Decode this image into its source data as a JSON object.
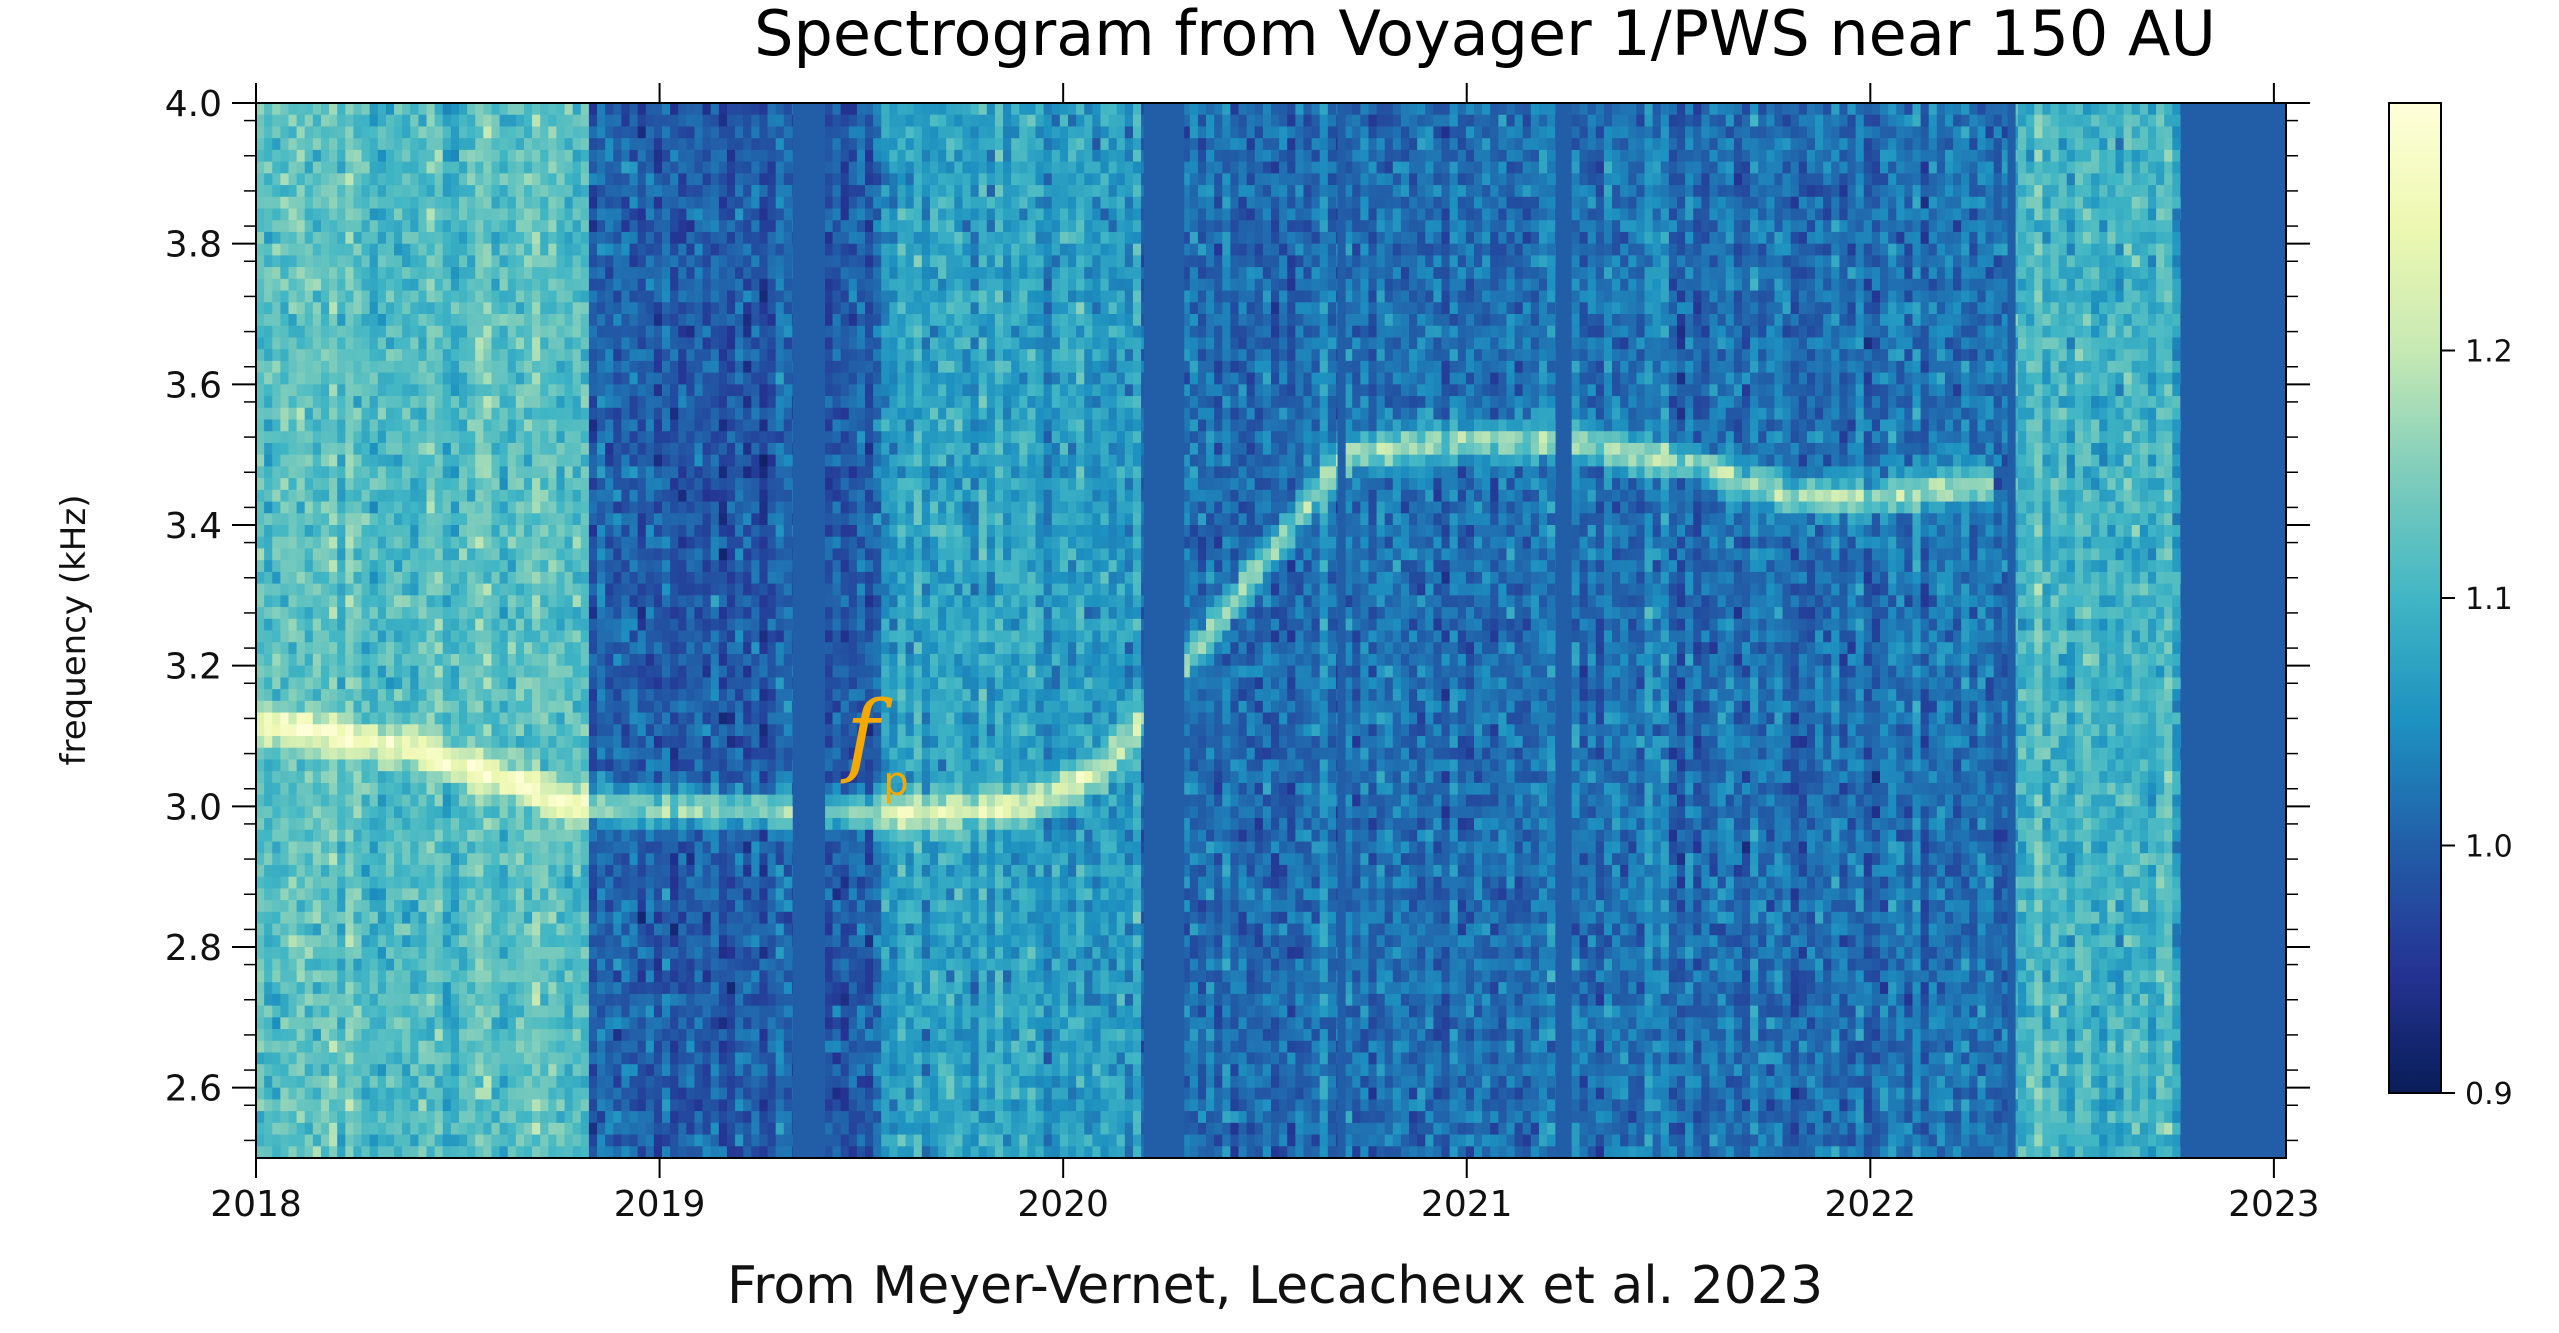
{
  "chart_data": {
    "type": "heatmap",
    "title": "Spectrogram from Voyager 1/PWS near 150 AU",
    "xlabel": "From Meyer-Vernet, Lecacheux et al. 2023",
    "ylabel": "frequency (kHz)",
    "xlim": [
      2018.0,
      2023.03
    ],
    "ylim": [
      2.5,
      4.0
    ],
    "x_ticks": [
      2018,
      2019,
      2020,
      2021,
      2022,
      2023
    ],
    "x_tick_labels": [
      "2018",
      "2019",
      "2020",
      "2021",
      "2022",
      "2023"
    ],
    "y_ticks": [
      2.6,
      2.8,
      3.0,
      3.2,
      3.4,
      3.6,
      3.8,
      4.0
    ],
    "y_tick_labels": [
      "2.6",
      "2.8",
      "3.0",
      "3.2",
      "3.4",
      "3.6",
      "3.8",
      "4.0"
    ],
    "colorbar": {
      "range": [
        0.9,
        1.3
      ],
      "ticks": [
        0.9,
        1.0,
        1.1,
        1.2
      ],
      "tick_labels": [
        "0.9",
        "1.0",
        "1.1",
        "1.2"
      ],
      "colormap": [
        "#081d58",
        "#253494",
        "#225ea8",
        "#1d91c0",
        "#41b6c4",
        "#7fcdbb",
        "#c7e9b4",
        "#edf8b1",
        "#ffffd9"
      ]
    },
    "annotation": {
      "symbol": "f",
      "subscript": "p",
      "color": "#f5a800",
      "x": 2019.45,
      "y": 3.05
    },
    "plasma_line": [
      [
        2018.0,
        3.12
      ],
      [
        2018.4,
        3.08
      ],
      [
        2018.8,
        3.0
      ],
      [
        2019.6,
        2.99
      ],
      [
        2019.9,
        3.0
      ],
      [
        2020.1,
        3.05
      ],
      [
        2020.7,
        3.5
      ],
      [
        2021.0,
        3.52
      ],
      [
        2021.25,
        3.52
      ],
      [
        2021.6,
        3.48
      ],
      [
        2021.8,
        3.44
      ],
      [
        2022.0,
        3.44
      ],
      [
        2022.3,
        3.46
      ]
    ],
    "data_gaps": [
      [
        2019.33,
        2019.41
      ],
      [
        2020.2,
        2020.3
      ],
      [
        2020.68,
        2020.7
      ],
      [
        2021.22,
        2021.26
      ],
      [
        2022.34,
        2022.36
      ],
      [
        2022.77,
        2023.03
      ]
    ],
    "background_segments": [
      {
        "range": [
          2018.0,
          2018.82
        ],
        "level": 1.12
      },
      {
        "range": [
          2018.82,
          2019.55
        ],
        "level": 1.0
      },
      {
        "range": [
          2019.55,
          2020.2
        ],
        "level": 1.07
      },
      {
        "range": [
          2020.3,
          2022.35
        ],
        "level": 1.02
      },
      {
        "range": [
          2022.35,
          2022.77
        ],
        "level": 1.1
      }
    ]
  }
}
